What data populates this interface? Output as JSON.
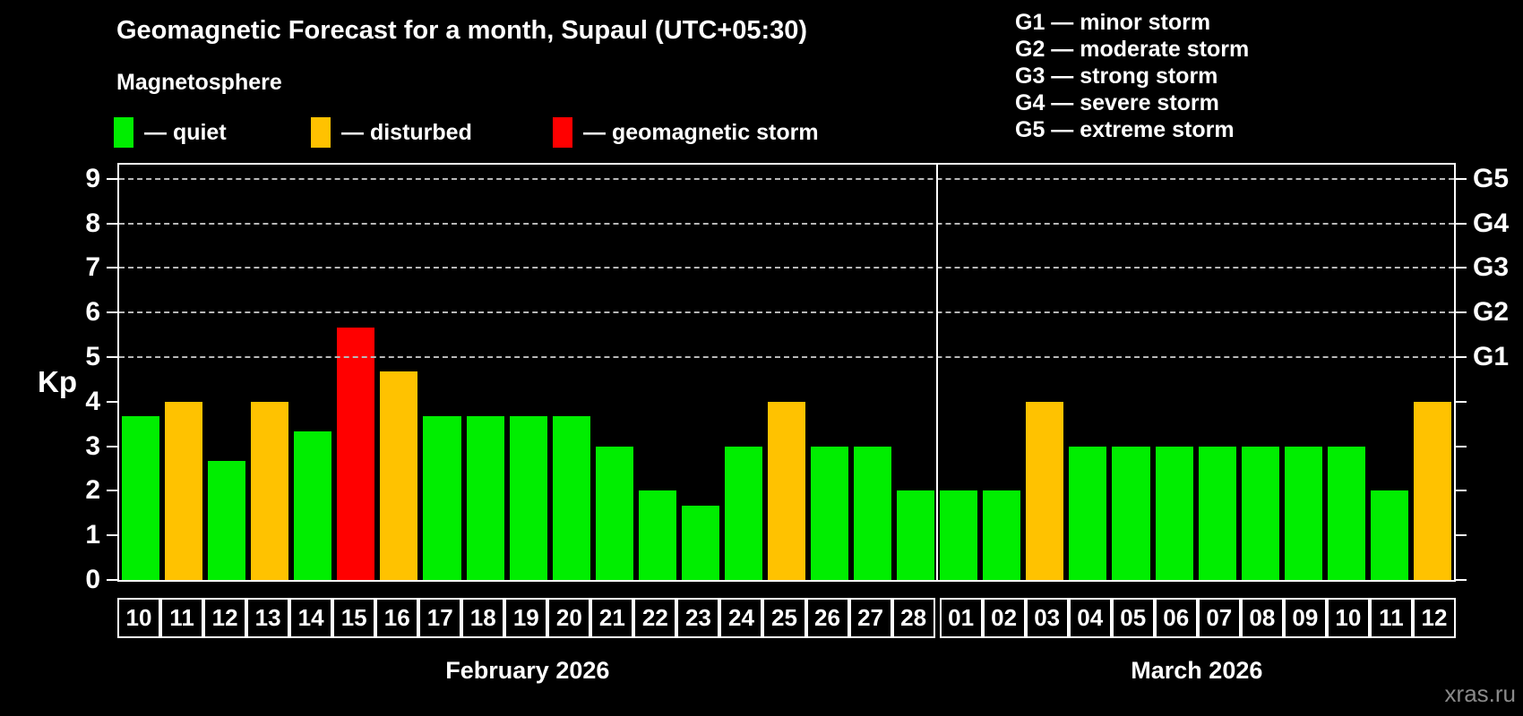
{
  "header": {
    "title": "Geomagnetic Forecast for a month, Supaul (UTC+05:30)",
    "subtitle": "Magnetosphere",
    "legend": [
      {
        "key": "quiet",
        "label": "— quiet",
        "color": "#00ee00"
      },
      {
        "key": "disturbed",
        "label": "— disturbed",
        "color": "#ffc200"
      },
      {
        "key": "storm",
        "label": "— geomagnetic storm",
        "color": "#ff0000"
      }
    ],
    "g_legend": [
      "G1 — minor storm",
      "G2 — moderate storm",
      "G3 — strong storm",
      "G4 — severe storm",
      "G5 — extreme storm"
    ]
  },
  "chart_data": {
    "type": "bar",
    "ylabel": "Kp",
    "ylim": [
      0,
      9.4
    ],
    "y_ticks": [
      0,
      1,
      2,
      3,
      4,
      5,
      6,
      7,
      8,
      9
    ],
    "gridlines_at": [
      5,
      6,
      7,
      8,
      9
    ],
    "right_axis": {
      "5": "G1",
      "6": "G2",
      "7": "G3",
      "8": "G4",
      "9": "G5"
    },
    "grid": "dashed gray horizontal lines at Kp 5–9 (storm levels)",
    "legend_position": "top-left",
    "colors": {
      "quiet": "#00ee00",
      "disturbed": "#ffc200",
      "storm": "#ff0000"
    },
    "groups": [
      {
        "month": "February 2026",
        "bars": [
          {
            "day": "10",
            "kp": 3.67,
            "status": "quiet"
          },
          {
            "day": "11",
            "kp": 4,
            "status": "disturbed"
          },
          {
            "day": "12",
            "kp": 2.67,
            "status": "quiet"
          },
          {
            "day": "13",
            "kp": 4,
            "status": "disturbed"
          },
          {
            "day": "14",
            "kp": 3.33,
            "status": "quiet"
          },
          {
            "day": "15",
            "kp": 5.67,
            "status": "storm"
          },
          {
            "day": "16",
            "kp": 4.67,
            "status": "disturbed"
          },
          {
            "day": "17",
            "kp": 3.67,
            "status": "quiet"
          },
          {
            "day": "18",
            "kp": 3.67,
            "status": "quiet"
          },
          {
            "day": "19",
            "kp": 3.67,
            "status": "quiet"
          },
          {
            "day": "20",
            "kp": 3.67,
            "status": "quiet"
          },
          {
            "day": "21",
            "kp": 3,
            "status": "quiet"
          },
          {
            "day": "22",
            "kp": 2,
            "status": "quiet"
          },
          {
            "day": "23",
            "kp": 1.67,
            "status": "quiet"
          },
          {
            "day": "24",
            "kp": 3,
            "status": "quiet"
          },
          {
            "day": "25",
            "kp": 4,
            "status": "disturbed"
          },
          {
            "day": "26",
            "kp": 3,
            "status": "quiet"
          },
          {
            "day": "27",
            "kp": 3,
            "status": "quiet"
          },
          {
            "day": "28",
            "kp": 2,
            "status": "quiet"
          }
        ]
      },
      {
        "month": "March 2026",
        "bars": [
          {
            "day": "01",
            "kp": 2,
            "status": "quiet"
          },
          {
            "day": "02",
            "kp": 2,
            "status": "quiet"
          },
          {
            "day": "03",
            "kp": 4,
            "status": "disturbed"
          },
          {
            "day": "04",
            "kp": 3,
            "status": "quiet"
          },
          {
            "day": "05",
            "kp": 3,
            "status": "quiet"
          },
          {
            "day": "06",
            "kp": 3,
            "status": "quiet"
          },
          {
            "day": "07",
            "kp": 3,
            "status": "quiet"
          },
          {
            "day": "08",
            "kp": 3,
            "status": "quiet"
          },
          {
            "day": "09",
            "kp": 3,
            "status": "quiet"
          },
          {
            "day": "10",
            "kp": 3,
            "status": "quiet"
          },
          {
            "day": "11",
            "kp": 2,
            "status": "quiet"
          },
          {
            "day": "12",
            "kp": 4,
            "status": "disturbed"
          }
        ]
      }
    ]
  },
  "watermark": "xras.ru"
}
